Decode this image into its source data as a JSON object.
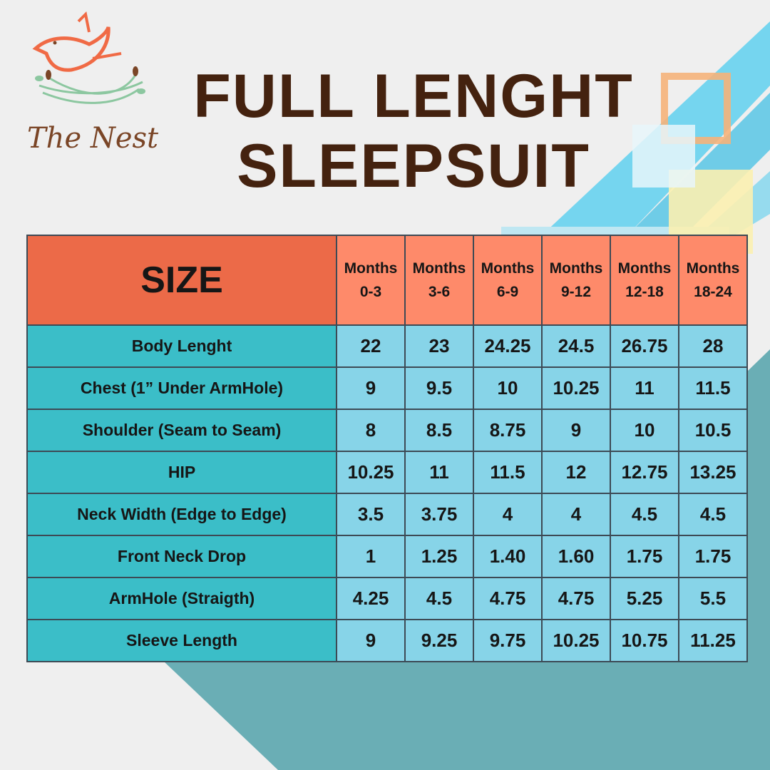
{
  "brand": {
    "name": "The Nest",
    "colors": {
      "bird": "#f06a45",
      "nest": "#8cc7a0",
      "leaves": "#7a4526"
    }
  },
  "title": {
    "line1": "FULL LENGHT",
    "line2": "SLEEPSUIT",
    "color": "#44220f"
  },
  "table": {
    "size_label": "SIZE",
    "columns": [
      {
        "top": "Months",
        "range": "0-3"
      },
      {
        "top": "Months",
        "range": "3-6"
      },
      {
        "top": "Months",
        "range": "6-9"
      },
      {
        "top": "Months",
        "range": "9-12"
      },
      {
        "top": "Months",
        "range": "12-18"
      },
      {
        "top": "Months",
        "range": "18-24"
      }
    ],
    "rows": [
      {
        "label": "Body Lenght",
        "values": [
          "22",
          "23",
          "24.25",
          "24.5",
          "26.75",
          "28"
        ]
      },
      {
        "label": "Chest (1” Under ArmHole)",
        "values": [
          "9",
          "9.5",
          "10",
          "10.25",
          "11",
          "11.5"
        ]
      },
      {
        "label": "Shoulder (Seam to Seam)",
        "values": [
          "8",
          "8.5",
          "8.75",
          "9",
          "10",
          "10.5"
        ]
      },
      {
        "label": "HIP",
        "values": [
          "10.25",
          "11",
          "11.5",
          "12",
          "12.75",
          "13.25"
        ]
      },
      {
        "label": "Neck Width (Edge to Edge)",
        "values": [
          "3.5",
          "3.75",
          "4",
          "4",
          "4.5",
          "4.5"
        ]
      },
      {
        "label": "Front Neck Drop",
        "values": [
          "1",
          "1.25",
          "1.40",
          "1.60",
          "1.75",
          "1.75"
        ]
      },
      {
        "label": "ArmHole (Straigth)",
        "values": [
          "4.25",
          "4.5",
          "4.75",
          "4.75",
          "5.25",
          "5.5"
        ]
      },
      {
        "label": "Sleeve Length",
        "values": [
          "9",
          "9.25",
          "9.75",
          "10.25",
          "10.75",
          "11.25"
        ]
      }
    ],
    "colors": {
      "size_header": "#ec6a48",
      "month_header": "#fe8a6a",
      "row_label": "#3bbec8",
      "cell": "#87d4e8"
    }
  }
}
